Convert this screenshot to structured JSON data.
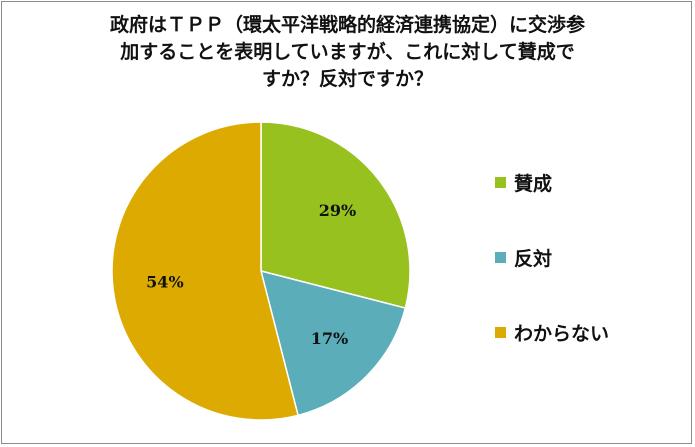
{
  "chart_data": {
    "type": "pie",
    "title_lines": [
      "政府はＴＰＰ（環太平洋戦略的経済連携協定）に交渉参",
      "加することを表明していますが、これに対して賛成で",
      "すか？反対ですか？"
    ],
    "slices": [
      {
        "label": "賛成",
        "value": 29,
        "display": "29%",
        "color": "#96c11f"
      },
      {
        "label": "反対",
        "value": 17,
        "display": "17%",
        "color": "#5aadb9"
      },
      {
        "label": "わからない",
        "value": 54,
        "display": "54%",
        "color": "#dcaa00"
      }
    ],
    "legend_position": "right"
  }
}
